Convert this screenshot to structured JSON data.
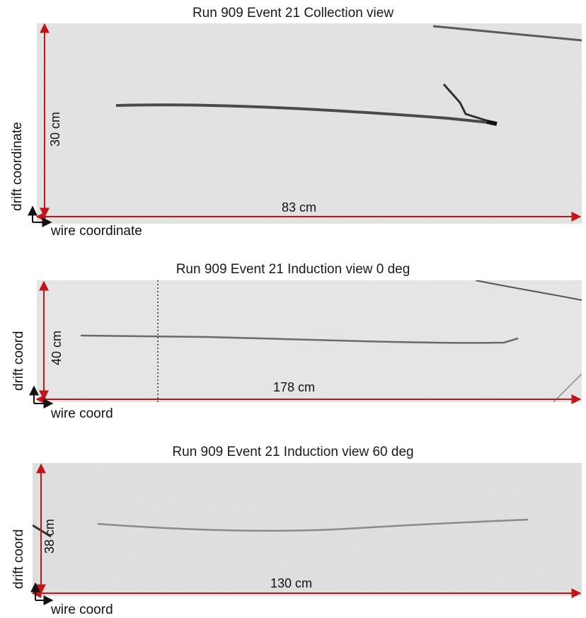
{
  "panels": [
    {
      "title": "Run 909 Event 21 Collection view",
      "drift_label": "drift coordinate",
      "wire_label": "wire coordinate",
      "vertical_dimension": "30 cm",
      "horizontal_dimension": "83 cm"
    },
    {
      "title": "Run 909 Event 21 Induction view 0 deg",
      "drift_label": "drift coord",
      "wire_label": "wire coord",
      "vertical_dimension": "40 cm",
      "horizontal_dimension": "178 cm"
    },
    {
      "title": "Run 909 Event 21 Induction view 60 deg",
      "drift_label": "drift coord",
      "wire_label": "wire coord",
      "vertical_dimension": "38 cm",
      "horizontal_dimension": "130 cm"
    }
  ],
  "colors": {
    "dimension_arrow": "#c0151b",
    "background_noise": "#d9d9d9",
    "track": "#3a3a3a"
  }
}
